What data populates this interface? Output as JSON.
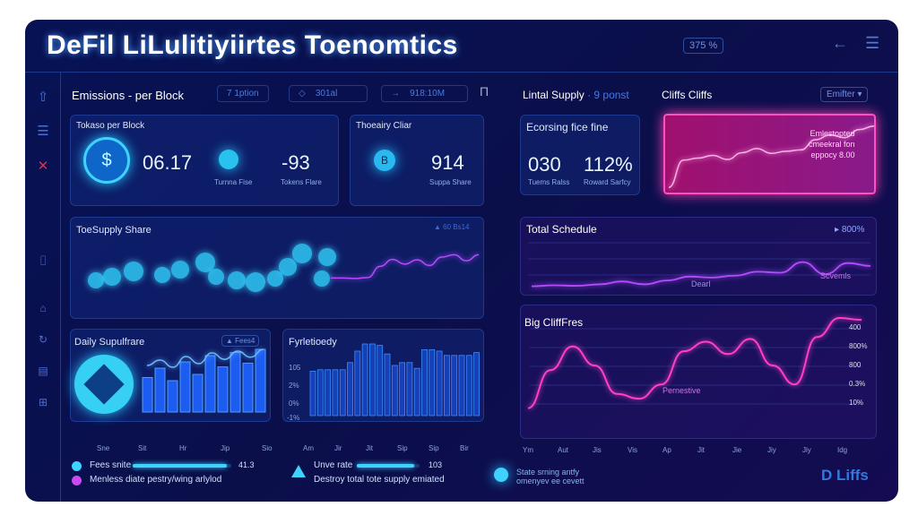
{
  "header": {
    "title": "DeFil LiLulitiyiirtes Toenomtics",
    "badge": "375 %",
    "icons": [
      "back-arrow-icon",
      "menu-icon"
    ]
  },
  "sidebar": {
    "icons": [
      "home-icon",
      "menu-icon",
      "close-icon",
      "thermometer-icon",
      "house-icon",
      "refresh-icon",
      "document-icon",
      "grid-icon"
    ]
  },
  "left": {
    "heading": "Emissions - per Block",
    "pills": [
      {
        "icon": "◇",
        "label": "7 1ption"
      },
      {
        "icon": "◇",
        "label": "301al"
      },
      {
        "icon": "→",
        "label": "918:10M"
      }
    ],
    "tokens_card": {
      "title": "Tokaso per Block",
      "value1": "06.17",
      "value2": "-93",
      "sub1": "Turnna Fise",
      "sub2": "Tokens Flare"
    },
    "theory_card": {
      "title": "Thoeairy Cliar",
      "value": "914",
      "sub": "Suppa Share"
    },
    "share_card": {
      "title": "ToeSupply Share",
      "badge": "▲ 60 Bs14"
    },
    "daily_card": {
      "title": "Daily Supulfrare",
      "badge": "▲ Fees4",
      "xlabels": [
        "Sne",
        "Sit",
        "Hr",
        "Jip",
        "Sio"
      ]
    },
    "fyr_card": {
      "title": "Fyrletioedy",
      "ylabels": [
        "105",
        "2%",
        "0%",
        "-1%"
      ],
      "xlabels": [
        "Am",
        "Jir",
        "Jit",
        "Sip",
        "Sip",
        "Bir"
      ]
    }
  },
  "right": {
    "supply_label": "Lintal Supply",
    "supply_sub": "· 9 ponst",
    "cliffs_title": "Cliffs Cliffs",
    "dropdown": "Emifter",
    "ecorsing": {
      "title": "Ecorsing fice fine",
      "value1": "030",
      "value2": "112%",
      "sub1": "Tuems Ralss",
      "sub2": "Roward Sarfcy"
    },
    "pink_legend": [
      "Emlestopted",
      "cmeekral fon",
      "eppocy 8.00"
    ],
    "schedule": {
      "title": "Total Schedule",
      "badge": "800%",
      "labels": [
        "Dearl",
        "Scvemls"
      ]
    },
    "big_cliff": {
      "title": "Big CliffFres",
      "annotation": "Pernestive",
      "ylabels": [
        "400",
        "800%",
        "800",
        "0.3%",
        "10%"
      ],
      "xlabels": [
        "Ym",
        "Aut",
        "Jis",
        "Vis",
        "Ap",
        "Jit",
        "Jie",
        "Jiy",
        "Jiy",
        "Idg"
      ]
    }
  },
  "footer": {
    "items": [
      {
        "label": "Fees snite",
        "value": "41.3",
        "fill": 0.95
      },
      {
        "label": "Menless diate pestry/wing arlylod"
      },
      {
        "label": "Unve rate",
        "value": "103",
        "fill": 0.92
      },
      {
        "label": "Destroy total tote supply emiated"
      },
      {
        "label": "State srning antfy"
      },
      {
        "label": "omenyev ee cevett"
      }
    ],
    "logo": "D Liffs"
  },
  "colors": {
    "accent": "#3fd2ff",
    "pink": "#ff3fb0",
    "purple": "#b44bff",
    "bg": "#0a0f4a"
  },
  "series": {
    "share": [
      5,
      5,
      4,
      6,
      30,
      45,
      35,
      44,
      32,
      50,
      55,
      42,
      55
    ],
    "daily": [
      55,
      70,
      50,
      80,
      60,
      90,
      72,
      95,
      78,
      100
    ],
    "fyr": [
      62,
      64,
      64,
      64,
      64,
      74,
      90,
      100,
      100,
      98,
      86,
      70,
      74,
      74,
      66,
      92,
      92,
      90,
      84,
      84,
      84,
      84,
      88
    ],
    "pink": [
      5,
      45,
      48,
      52,
      46,
      56,
      62,
      55,
      58,
      60,
      75,
      82,
      78,
      90,
      95
    ],
    "schedule": [
      10,
      12,
      11,
      14,
      20,
      14,
      22,
      30,
      28,
      32,
      40,
      38,
      60,
      35,
      58,
      52
    ],
    "bigcliff": [
      5,
      45,
      70,
      50,
      20,
      15,
      30,
      65,
      75,
      62,
      78,
      50,
      30,
      80,
      100,
      98
    ]
  }
}
